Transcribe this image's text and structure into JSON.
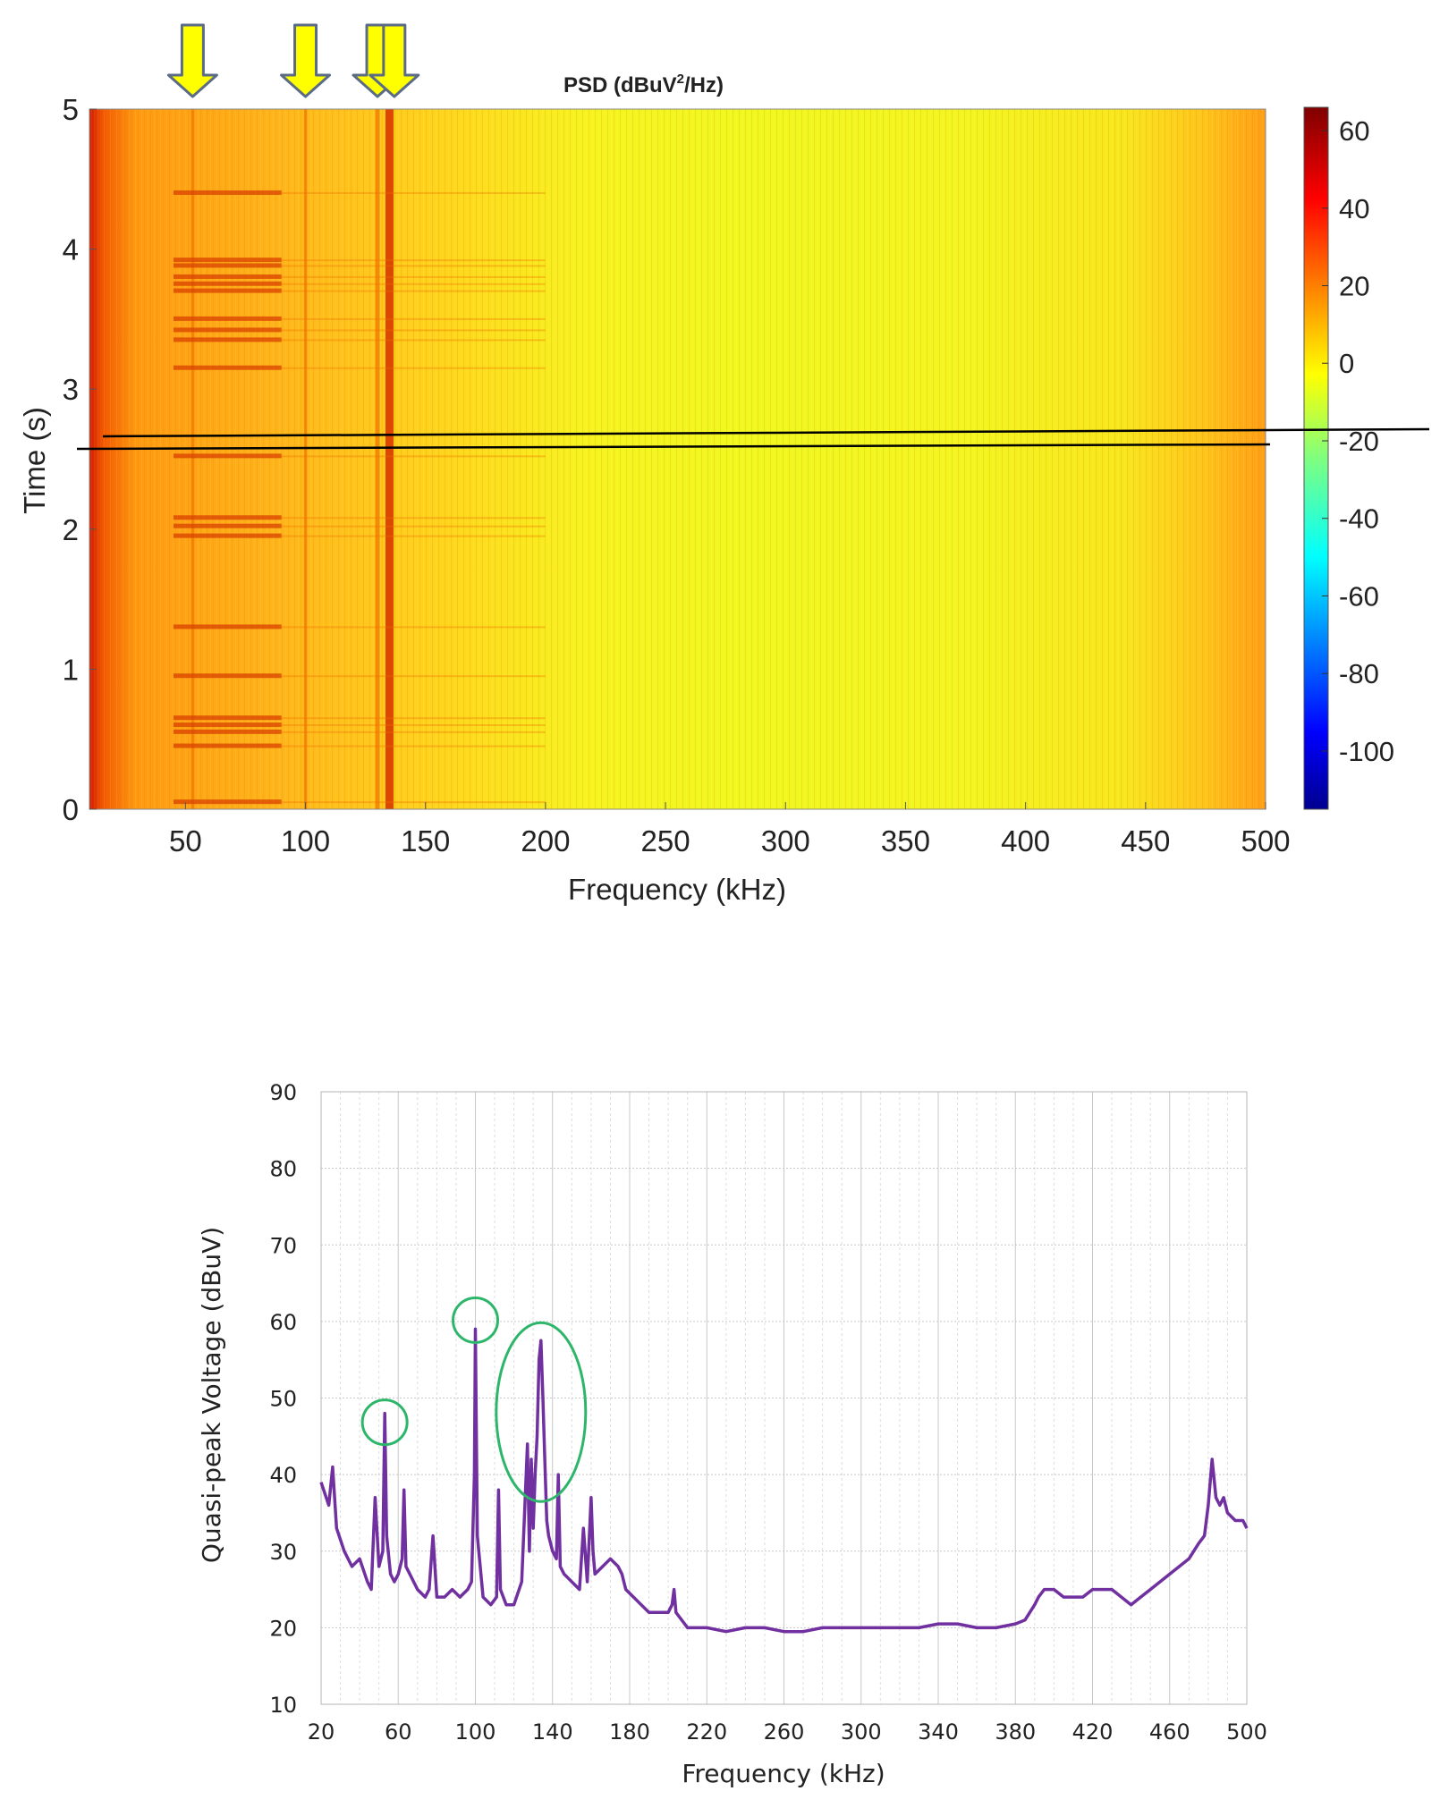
{
  "chart_data": [
    {
      "type": "heatmap",
      "title": "PSD (dBuV",
      "title_sup": "2",
      "title_tail": "/Hz)",
      "xlabel": "Frequency (kHz)",
      "ylabel": "Time (s)",
      "xlim": [
        10,
        500
      ],
      "ylim": [
        0,
        5
      ],
      "xticks": [
        "50",
        "100",
        "150",
        "200",
        "250",
        "300",
        "350",
        "400",
        "450",
        "500"
      ],
      "yticks": [
        "0",
        "1",
        "2",
        "3",
        "4",
        "5"
      ],
      "colorbar": {
        "range": [
          -115,
          66
        ],
        "ticks": [
          "60",
          "40",
          "20",
          "0",
          "-20",
          "-40",
          "-60",
          "-80",
          "-100"
        ]
      },
      "vertical_lines_khz": [
        53,
        100,
        130,
        135
      ],
      "horizontal_bursts_s": [
        0.05,
        0.45,
        0.55,
        0.6,
        0.65,
        0.95,
        1.3,
        1.95,
        2.02,
        2.08,
        2.52,
        3.15,
        3.35,
        3.42,
        3.5,
        3.7,
        3.75,
        3.8,
        3.88,
        3.92,
        4.4
      ],
      "arrow_markers_khz": [
        53,
        100,
        130,
        137
      ],
      "annotation_line": {
        "description": "black cut line near 2.6 s"
      }
    },
    {
      "type": "line",
      "title": "",
      "xlabel": "Frequency (kHz)",
      "ylabel": "Quasi-peak Voltage (dBuV)",
      "xlim": [
        20,
        500
      ],
      "ylim": [
        10,
        90
      ],
      "xticks": [
        "20",
        "60",
        "100",
        "140",
        "180",
        "220",
        "260",
        "300",
        "340",
        "380",
        "420",
        "460",
        "500"
      ],
      "yticks": [
        "10",
        "20",
        "30",
        "40",
        "50",
        "60",
        "70",
        "80",
        "90"
      ],
      "color": "#7030a0",
      "series": [
        {
          "name": "Quasi-peak",
          "x": [
            20,
            24,
            26,
            28,
            32,
            36,
            40,
            44,
            46,
            48,
            50,
            52,
            53,
            54,
            56,
            58,
            60,
            62,
            63,
            64,
            66,
            70,
            74,
            76,
            78,
            80,
            84,
            88,
            92,
            96,
            98,
            99.5,
            100,
            101,
            104,
            108,
            111,
            112,
            113,
            116,
            120,
            124,
            127,
            128,
            129,
            130,
            131,
            132,
            133,
            134,
            135,
            136,
            137,
            138,
            140,
            142,
            143,
            144,
            146,
            150,
            154,
            156,
            158,
            160,
            161,
            162,
            166,
            170,
            174,
            176,
            177,
            178,
            182,
            186,
            190,
            196,
            200,
            202,
            203,
            204,
            210,
            220,
            230,
            240,
            250,
            260,
            270,
            280,
            290,
            300,
            310,
            320,
            330,
            340,
            350,
            360,
            370,
            380,
            385,
            390,
            392,
            395,
            400,
            405,
            410,
            415,
            420,
            425,
            430,
            435,
            440,
            445,
            450,
            455,
            460,
            465,
            470,
            475,
            478,
            480,
            482,
            484,
            486,
            488,
            490,
            494,
            498,
            500
          ],
          "values": [
            39,
            36,
            41,
            33,
            30,
            28,
            29,
            26,
            25,
            37,
            28,
            30,
            48,
            32,
            27,
            26,
            27,
            29,
            38,
            28,
            27,
            25,
            24,
            25,
            32,
            24,
            24,
            25,
            24,
            25,
            26,
            40,
            59,
            32,
            24,
            23,
            24,
            38,
            25,
            23,
            23,
            26,
            44,
            30,
            42,
            33,
            40,
            45,
            55,
            57.5,
            50,
            42,
            34,
            32,
            30,
            29,
            40,
            28,
            27,
            26,
            25,
            33,
            26,
            37,
            30,
            27,
            28,
            29,
            28,
            27,
            26,
            25,
            24,
            23,
            22,
            22,
            22,
            23,
            25,
            22,
            20,
            20,
            19.5,
            20,
            20,
            19.5,
            19.5,
            20,
            20,
            20,
            20,
            20,
            20,
            20.5,
            20.5,
            20,
            20,
            20.5,
            21,
            23,
            24,
            25,
            25,
            24,
            24,
            24,
            25,
            25,
            25,
            24,
            23,
            24,
            25,
            26,
            27,
            28,
            29,
            31,
            32,
            36,
            42,
            37,
            36,
            37,
            35,
            34,
            34,
            33
          ]
        }
      ],
      "highlighted_peaks": [
        {
          "x": 53,
          "y": 48
        },
        {
          "x": 100,
          "y": 59
        },
        {
          "x": 134,
          "y": 57.5
        }
      ],
      "highlight_color": "#2db66a"
    }
  ]
}
